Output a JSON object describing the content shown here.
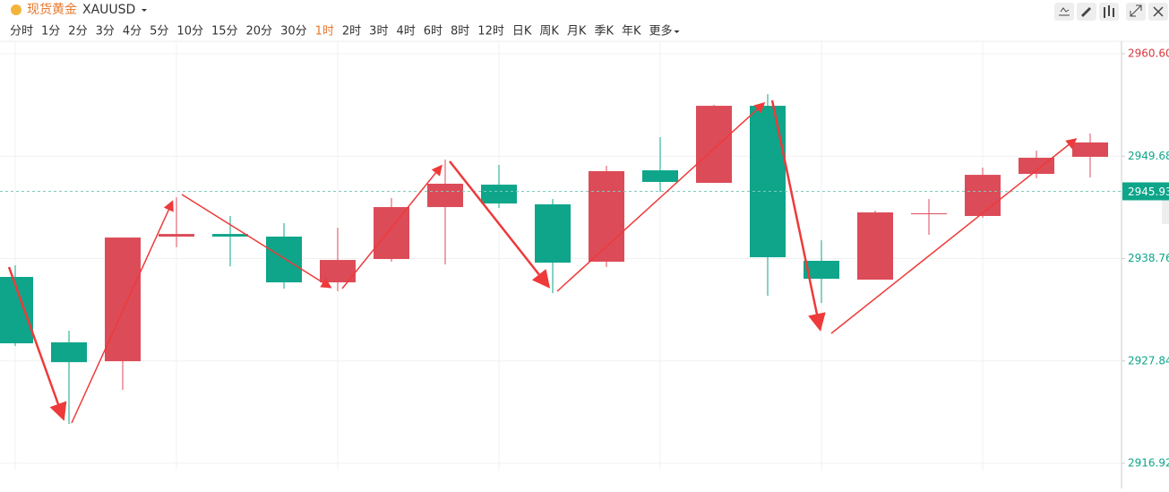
{
  "header": {
    "symbol_name": "现货黄金",
    "symbol": "XAUUSD",
    "timeframes": [
      "分时",
      "1分",
      "2分",
      "3分",
      "4分",
      "5分",
      "10分",
      "15分",
      "20分",
      "30分",
      "1时",
      "2时",
      "3时",
      "4时",
      "6时",
      "8时",
      "12时",
      "日K",
      "周K",
      "月K",
      "季K",
      "年K",
      "更多"
    ],
    "active_timeframe": "1时"
  },
  "chart_data": {
    "type": "candlestick",
    "open": [
      2936.8,
      2929.82,
      2927.81,
      2941.1,
      2941.38,
      2941.1,
      2936.22,
      2938.71,
      2944.25,
      2946.64,
      2944.54,
      2938.42,
      2948.17,
      2946.83,
      2955.05,
      2938.52,
      2936.51,
      2943.49,
      2943.3,
      2947.79,
      2949.61
    ],
    "high": [
      2938.04,
      2931.06,
      2941.0,
      2945.3,
      2943.3,
      2942.53,
      2942.05,
      2945.21,
      2949.32,
      2948.75,
      2945.11,
      2948.65,
      2951.71,
      2955.15,
      2956.3,
      2940.71,
      2943.87,
      2945.11,
      2948.46,
      2950.27,
      2952.09
    ],
    "low": [
      2929.43,
      2921.12,
      2924.75,
      2939.95,
      2937.94,
      2935.55,
      2935.27,
      2938.42,
      2938.13,
      2944.16,
      2935.07,
      2937.85,
      2945.88,
      2946.83,
      2934.79,
      2934.02,
      2936.51,
      2941.29,
      2943.1,
      2947.31,
      2947.41
    ],
    "close": [
      2929.72,
      2927.71,
      2941.0,
      2941.38,
      2941.1,
      2936.22,
      2938.61,
      2944.25,
      2946.74,
      2944.63,
      2938.32,
      2948.08,
      2946.93,
      2955.05,
      2938.9,
      2936.6,
      2943.68,
      2943.58,
      2947.69,
      2949.51,
      2951.14
    ],
    "up_color": "#dc4b58",
    "down_color": "#0ea58a",
    "ylim": [
      2916.92,
      2960.6
    ],
    "yticks": [
      {
        "value": 2960.6,
        "label": "2960.60"
      },
      {
        "value": 2949.68,
        "label": "2949.68"
      },
      {
        "value": 2938.76,
        "label": "2938.76"
      },
      {
        "value": 2927.84,
        "label": "2927.84"
      },
      {
        "value": 2916.92,
        "label": "2916.92"
      }
    ],
    "ytick_colors": [
      "#d9363e",
      "#0ea58a",
      "#0ea58a",
      "#0ea58a",
      "#0ea58a"
    ],
    "current_price": {
      "value": 2945.93,
      "label": "2945.93"
    },
    "grid": true
  }
}
